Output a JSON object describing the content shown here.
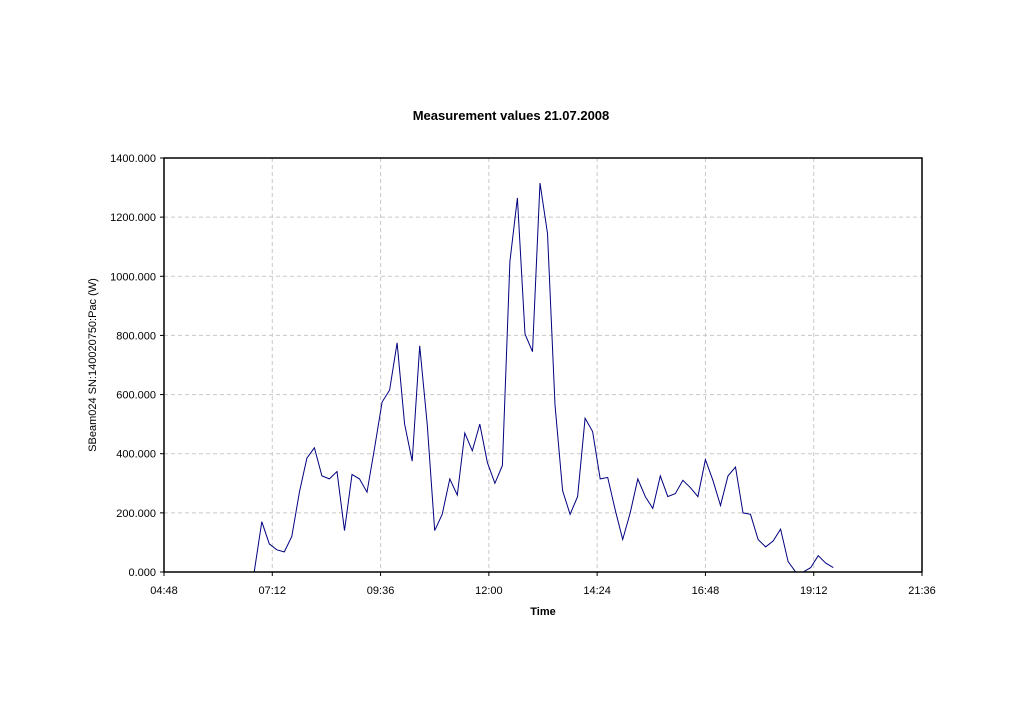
{
  "chart_data": {
    "type": "line",
    "title": "Measurement values 21.07.2008",
    "xlabel": "Time",
    "ylabel": "SBeam024 SN:140020750:Pac (W)",
    "x_ticks": [
      "04:48",
      "07:12",
      "09:36",
      "12:00",
      "14:24",
      "16:48",
      "19:12",
      "21:36"
    ],
    "y_ticks": [
      "0.000",
      "200.000",
      "400.000",
      "600.000",
      "800.000",
      "1000.000",
      "1200.000",
      "1400.000"
    ],
    "xlim": [
      "04:48",
      "21:36"
    ],
    "ylim": [
      0,
      1400
    ],
    "grid": true,
    "line_color": "#000080",
    "series": [
      {
        "x": [
          "06:48",
          "06:58",
          "07:08",
          "07:18",
          "07:28",
          "07:38",
          "07:48",
          "07:58",
          "08:08",
          "08:18",
          "08:28",
          "08:38",
          "08:48",
          "08:58",
          "09:08",
          "09:18",
          "09:28",
          "09:38",
          "09:48",
          "09:58",
          "10:08",
          "10:18",
          "10:28",
          "10:38",
          "10:48",
          "10:58",
          "11:08",
          "11:18",
          "11:28",
          "11:38",
          "11:48",
          "11:58",
          "12:08",
          "12:18",
          "12:28",
          "12:38",
          "12:48",
          "12:58",
          "13:08",
          "13:18",
          "13:28",
          "13:38",
          "13:48",
          "13:58",
          "14:08",
          "14:18",
          "14:28",
          "14:38",
          "14:48",
          "14:58",
          "15:08",
          "15:18",
          "15:28",
          "15:38",
          "15:48",
          "15:58",
          "16:08",
          "16:18",
          "16:28",
          "16:38",
          "16:48",
          "16:58",
          "17:08",
          "17:18",
          "17:28",
          "17:38",
          "17:48",
          "17:58",
          "18:08",
          "18:18",
          "18:28",
          "18:38",
          "18:48",
          "18:58",
          "19:08",
          "19:18",
          "19:28",
          "19:38"
        ],
        "values": [
          0,
          170,
          95,
          75,
          68,
          120,
          270,
          385,
          420,
          325,
          315,
          340,
          140,
          330,
          315,
          270,
          420,
          575,
          615,
          775,
          500,
          375,
          765,
          500,
          140,
          195,
          315,
          260,
          470,
          410,
          500,
          370,
          300,
          360,
          1050,
          1265,
          805,
          745,
          1315,
          1145,
          565,
          275,
          195,
          255,
          520,
          475,
          315,
          320,
          210,
          110,
          200,
          315,
          255,
          215,
          325,
          255,
          265,
          310,
          285,
          255,
          380,
          310,
          225,
          325,
          355,
          200,
          195,
          110,
          85,
          105,
          145,
          35,
          0,
          0,
          15,
          55,
          30,
          15
        ]
      }
    ]
  }
}
